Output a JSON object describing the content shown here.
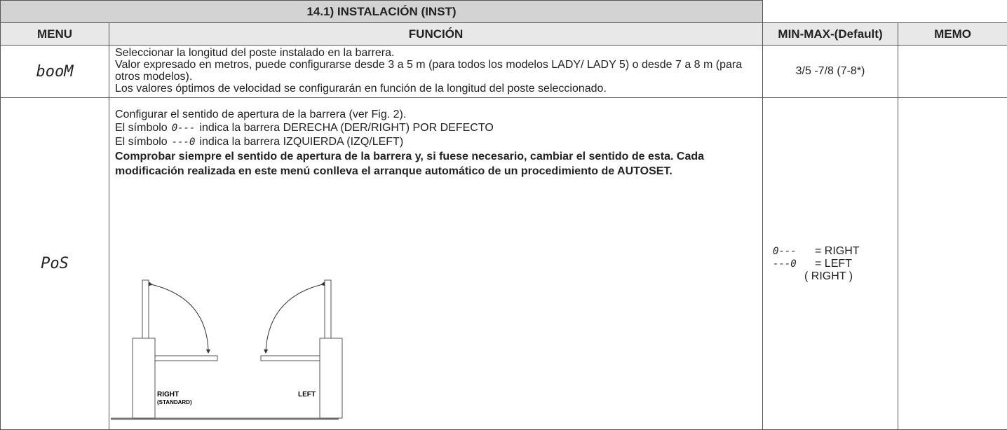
{
  "header": {
    "title": "14.1) INSTALACIÓN (INST)"
  },
  "table": {
    "headers": [
      "MENU",
      "FUNCIÓN",
      "MIN-MAX-(Default)",
      "MEMO"
    ],
    "rows": [
      {
        "menu": "booM",
        "function": [
          "Seleccionar la longitud del poste instalado en la barrera.",
          "Valor expresado en metros, puede configurarse desde 3 a 5 m (para todos los modelos LADY/ LADY 5) o desde 7 a 8 m (para otros modelos).",
          "Los valores óptimos de velocidad se configurarán en función de la longitud del poste seleccionado."
        ],
        "minmax": "3/5 -7/8 (7-8*)"
      },
      {
        "menu": "PoS",
        "function": {
          "intro": "Configurar el sentido de apertura de la barrera (ver Fig. 2).",
          "right_line": {
            "prefix": "El símbolo",
            "symbol": "0---",
            "suffix": "indica la barrera DERECHA (DER/RIGHT) POR DEFECTO"
          },
          "left_line": {
            "prefix": "El símbolo",
            "symbol": "---0",
            "suffix": "indica la barrera IZQUIERDA (IZQ/LEFT)"
          },
          "note": "Comprobar siempre el sentido de apertura de la barrera y, si fuese necesario, cambiar el sentido de esta. Cada modificación realizada en este menú conlleva el arranque automático de un procedimiento de AUTOSET."
        },
        "figure": {
          "right_label": "RIGHT",
          "right_sublabel": "(STANDARD)",
          "left_label": "LEFT"
        },
        "minmax": [
          {
            "symbol": "0---",
            "label": "= RIGHT"
          },
          {
            "symbol": "---0",
            "label": "= LEFT"
          }
        ],
        "default": "( RIGHT )"
      }
    ]
  }
}
